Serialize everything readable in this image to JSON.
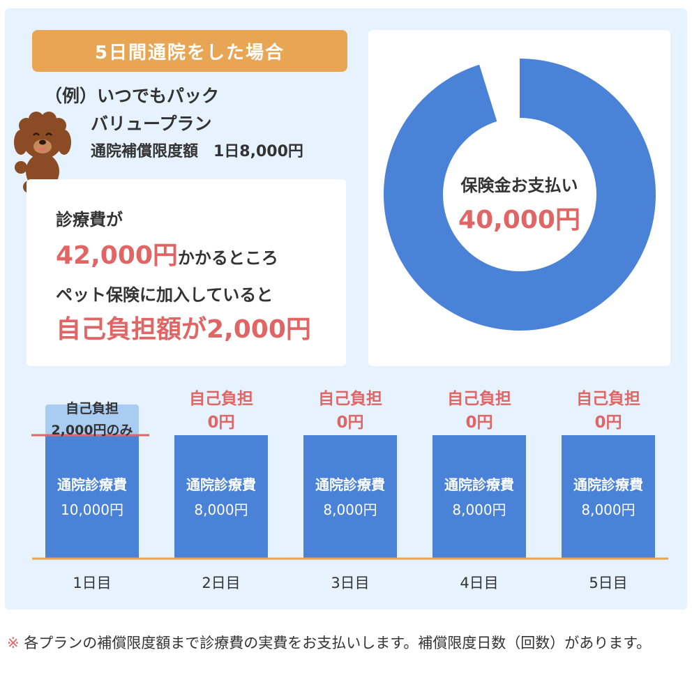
{
  "header": {
    "title": "5日間通院をした場合"
  },
  "plan": {
    "line1": "（例）いつでもパック",
    "line2": "バリュープラン",
    "line3": "通院補償限度額　1日8,000円"
  },
  "cost": {
    "line1": "診療費が",
    "amount": "42,000円",
    "line2_suffix": "かかるところ",
    "line3": "ペット保険に加入していると",
    "line4": "自己負担額が2,000円"
  },
  "donut": {
    "label": "保険金お支払い",
    "amount": "40,000円",
    "paid_fraction": 0.952,
    "color": "#4a82d8"
  },
  "colors": {
    "bar": "#4a82d8",
    "bar_top": "#a9ccf3",
    "accent": "#e06565",
    "baseline": "#e8a655"
  },
  "days": [
    {
      "day": "1日目",
      "label": "通院診療費",
      "amount": "10,000円",
      "value": 10000,
      "self_label": "自己負担",
      "self_amount": "2,000円のみ",
      "self_value": 2000
    },
    {
      "day": "2日目",
      "label": "通院診療費",
      "amount": "8,000円",
      "value": 8000,
      "self_label": "自己負担",
      "self_amount": "0円",
      "self_value": 0
    },
    {
      "day": "3日目",
      "label": "通院診療費",
      "amount": "8,000円",
      "value": 8000,
      "self_label": "自己負担",
      "self_amount": "0円",
      "self_value": 0
    },
    {
      "day": "4日目",
      "label": "通院診療費",
      "amount": "8,000円",
      "value": 8000,
      "self_label": "自己負担",
      "self_amount": "0円",
      "self_value": 0
    },
    {
      "day": "5日目",
      "label": "通院診療費",
      "amount": "8,000円",
      "value": 8000,
      "self_label": "自己負担",
      "self_amount": "0円",
      "self_value": 0
    }
  ],
  "footnote": {
    "mark": "※",
    "text": "各プランの補償限度額まで診療費の実費をお支払いします。補償限度日数（回数）があります。"
  }
}
